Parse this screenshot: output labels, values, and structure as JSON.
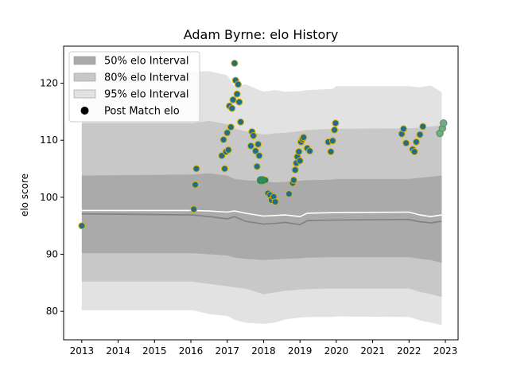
{
  "chart_data": {
    "type": "scatter",
    "title": "Adam Byrne: elo History",
    "xlabel": "",
    "ylabel": "elo score",
    "xlim": [
      2012.5,
      2023.35
    ],
    "ylim": [
      75,
      126.5
    ],
    "x_ticks": [
      2013,
      2014,
      2015,
      2016,
      2017,
      2018,
      2019,
      2020,
      2021,
      2022,
      2023
    ],
    "y_ticks": [
      80,
      90,
      100,
      110,
      120
    ],
    "legend": {
      "placement": "top-left",
      "entries": [
        "50% elo Interval",
        "80% elo Interval",
        "95% elo Interval",
        "Post Match elo"
      ]
    },
    "colors": {
      "band50": "#aaaaaa",
      "band80": "#c8c8c8",
      "band95": "#e2e2e2",
      "median_line": "#808080",
      "mean_line": "#ffffff",
      "point_fill": "#1f6f8b",
      "point_edge": "#e0b000",
      "recent_fill": "#2e8b57",
      "latest_fill": "#6fae7f",
      "latest_edge": "#5a8a6a"
    },
    "bands": {
      "x": [
        2013.0,
        2016.05,
        2016.5,
        2017.0,
        2017.2,
        2017.5,
        2018.0,
        2018.3,
        2018.6,
        2019.0,
        2019.2,
        2019.9,
        2020.0,
        2022.0,
        2022.3,
        2022.6,
        2022.9
      ],
      "p95_low": [
        80.2,
        80.2,
        79.5,
        79.2,
        78.5,
        78.0,
        77.8,
        78.0,
        78.6,
        78.9,
        79.0,
        79.0,
        79.1,
        79.0,
        78.4,
        78.0,
        77.6
      ],
      "p95_high": [
        122.0,
        122.0,
        122.1,
        121.4,
        119.5,
        119.8,
        118.5,
        118.8,
        118.5,
        118.6,
        118.8,
        119.0,
        119.5,
        119.5,
        119.3,
        119.6,
        118.4
      ],
      "p80_low": [
        85.2,
        85.2,
        84.8,
        84.4,
        84.2,
        84.0,
        83.0,
        83.3,
        83.6,
        83.8,
        83.9,
        84.0,
        84.0,
        84.0,
        83.4,
        83.0,
        82.5
      ],
      "p80_high": [
        113.0,
        113.0,
        113.4,
        112.8,
        112.0,
        111.6,
        111.0,
        111.2,
        111.3,
        111.6,
        111.8,
        112.0,
        112.0,
        112.1,
        112.2,
        112.4,
        112.6
      ],
      "p50_low": [
        90.2,
        90.2,
        90.0,
        89.8,
        89.4,
        89.2,
        89.0,
        89.1,
        89.2,
        89.3,
        89.4,
        89.5,
        89.5,
        89.5,
        89.2,
        89.0,
        88.5
      ],
      "p50_high": [
        103.8,
        104.0,
        104.2,
        103.8,
        103.2,
        103.0,
        102.8,
        102.6,
        102.7,
        102.9,
        103.0,
        103.1,
        103.2,
        103.2,
        103.4,
        103.6,
        103.8
      ],
      "median": [
        97.1,
        96.9,
        96.6,
        96.2,
        96.6,
        95.8,
        95.3,
        95.4,
        95.6,
        95.2,
        95.9,
        96.0,
        96.0,
        96.1,
        95.7,
        95.5,
        95.8
      ],
      "mean": [
        97.7,
        97.7,
        97.6,
        97.4,
        97.6,
        97.2,
        96.7,
        96.8,
        96.9,
        96.6,
        97.2,
        97.3,
        97.3,
        97.4,
        96.9,
        96.6,
        96.9
      ]
    },
    "series": [
      {
        "name": "Post Match elo",
        "x": [
          2013.0,
          2016.08,
          2016.12,
          2016.15,
          2016.85,
          2016.9,
          2016.93,
          2016.97,
          2017.0,
          2017.03,
          2017.06,
          2017.1,
          2017.13,
          2017.16,
          2017.2,
          2017.23,
          2017.27,
          2017.3,
          2017.33,
          2017.37,
          2017.65,
          2017.68,
          2017.72,
          2017.78,
          2017.82,
          2017.85,
          2017.88,
          2018.05,
          2018.12,
          2018.18,
          2018.22,
          2018.28,
          2018.32,
          2018.7,
          2018.8,
          2018.83,
          2018.87,
          2018.9,
          2018.93,
          2018.97,
          2019.0,
          2019.03,
          2019.07,
          2019.1,
          2019.2,
          2019.27,
          2019.78,
          2019.85,
          2019.9,
          2019.95,
          2019.98,
          2021.8,
          2021.85,
          2021.92,
          2022.1,
          2022.15,
          2022.2,
          2022.3,
          2022.38
        ],
        "y": [
          95.0,
          97.9,
          102.2,
          105.0,
          107.3,
          110.1,
          105.0,
          108.0,
          111.3,
          108.3,
          116.0,
          112.3,
          115.6,
          117.1,
          123.5,
          120.5,
          118.1,
          119.8,
          116.7,
          113.2,
          109.0,
          111.5,
          110.8,
          108.1,
          105.4,
          109.3,
          107.3,
          103.0,
          100.7,
          100.4,
          99.5,
          100.1,
          99.2,
          100.6,
          102.5,
          103.0,
          104.8,
          106.0,
          107.1,
          108.0,
          106.4,
          109.7,
          110.2,
          110.5,
          108.6,
          108.1,
          109.7,
          108.0,
          109.9,
          111.8,
          113.0,
          111.1,
          112.0,
          109.5,
          108.4,
          108.0,
          109.7,
          111.0,
          112.4
        ]
      },
      {
        "name": "",
        "style": "recent",
        "x": [
          2017.92,
          2017.97
        ],
        "y": [
          103.0,
          103.0
        ]
      },
      {
        "name": "",
        "style": "latest",
        "x": [
          2022.85,
          2022.92,
          2022.95
        ],
        "y": [
          111.2,
          112.1,
          113.0
        ]
      }
    ]
  }
}
